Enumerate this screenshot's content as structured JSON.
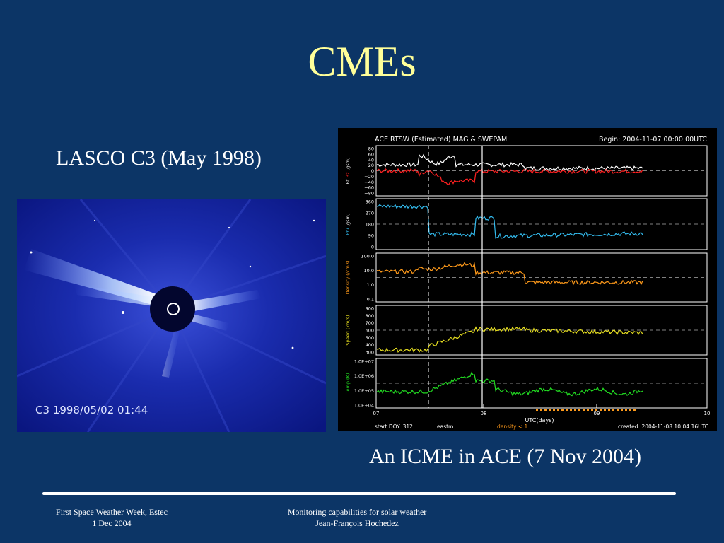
{
  "slide": {
    "title": "CMEs",
    "lasco_caption": "LASCO C3 (May 1998)",
    "ace_caption": "An ICME in ACE (7 Nov 2004)"
  },
  "lasco": {
    "image_label": "C3  1998/05/02 01:44"
  },
  "ace_plot": {
    "header_left": "ACE RTSW (Estimated) MAG & SWEPAM",
    "header_right": "Begin: 2004-11-07 00:00:00UTC",
    "panels": [
      {
        "ylabel": "Bt Bz (gsm)",
        "ylabel_parts": [
          "Bt",
          "Bz",
          "(gsm)"
        ],
        "ylabel_colors": [
          "#ffffff",
          "#ff2020",
          "#ffffff"
        ],
        "ticks": [
          "80",
          "60",
          "40",
          "20",
          "0",
          "−20",
          "−40",
          "−60",
          "−80"
        ]
      },
      {
        "ylabel": "Phi (gsm)",
        "ylabel_parts": [
          "Phi",
          "(gsm)"
        ],
        "ylabel_colors": [
          "#33bbee",
          "#ffffff"
        ],
        "ticks": [
          "360",
          "270",
          "180",
          "90",
          "0"
        ]
      },
      {
        "ylabel": "Density (/cm3)",
        "ylabel_parts": [
          "Density (/cm3)"
        ],
        "ylabel_colors": [
          "#ff9a1a"
        ],
        "ticks": [
          "100.0",
          "10.0",
          "1.0",
          "0.1"
        ]
      },
      {
        "ylabel": "Speed (km/s)",
        "ylabel_parts": [
          "Speed (km/s)"
        ],
        "ylabel_colors": [
          "#e8e020"
        ],
        "ticks": [
          "900",
          "800",
          "700",
          "600",
          "500",
          "400",
          "300"
        ]
      },
      {
        "ylabel": "Temp (K)",
        "ylabel_parts": [
          "Temp (K)"
        ],
        "ylabel_colors": [
          "#22dd22"
        ],
        "ticks": [
          "1.0E+07",
          "1.0E+06",
          "1.0E+05",
          "1.0E+04"
        ]
      }
    ],
    "x_ticks": [
      "07",
      "08",
      "09",
      "10"
    ],
    "x_label": "UTC(days)",
    "footer_left": "start DOY: 312",
    "footer_mid1": "eastm",
    "footer_mid2": "density < 1",
    "footer_right": "created: 2004-11-08 10:04:16UTC",
    "colors": {
      "bt": "#ffffff",
      "bz": "#ff2020",
      "phi": "#33bbee",
      "density": "#ff9a1a",
      "speed": "#e8e020",
      "temp": "#22dd22"
    }
  },
  "footer": {
    "left_line1": "First Space Weather Week, Estec",
    "left_line2": "1 Dec 2004",
    "center_line1": "Monitoring capabilities for solar weather",
    "center_line2": "Jean-François Hochedez"
  },
  "colors": {
    "background": "#0c3566",
    "title": "#ffff99",
    "text": "#ffffff"
  }
}
